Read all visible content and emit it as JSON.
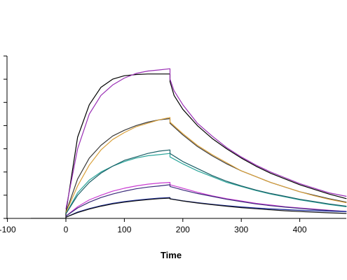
{
  "chart_data": {
    "type": "line",
    "title": "",
    "xlabel": "Time",
    "ylabel": "",
    "xlim": [
      -100,
      480
    ],
    "ylim": [
      0,
      14
    ],
    "x_ticks": [
      -100,
      0,
      100,
      200,
      300,
      400
    ],
    "x_tick_labels": [
      "-100",
      "0",
      "100",
      "200",
      "300",
      "400"
    ],
    "y_ticks": [
      0,
      2,
      4,
      6,
      8,
      10,
      12,
      14
    ],
    "grid": false,
    "legend": "none",
    "series": [
      {
        "color": "#000000",
        "points": [
          [
            -60,
            0
          ],
          [
            0,
            0
          ],
          [
            0,
            0.5
          ],
          [
            20,
            7.0
          ],
          [
            40,
            9.8
          ],
          [
            60,
            11.3
          ],
          [
            80,
            12.0
          ],
          [
            100,
            12.3
          ],
          [
            120,
            12.4
          ],
          [
            140,
            12.45
          ],
          [
            178,
            12.45
          ],
          [
            178,
            11.8
          ],
          [
            185,
            10.6
          ],
          [
            200,
            9.4
          ],
          [
            225,
            8.0
          ],
          [
            250,
            6.9
          ],
          [
            275,
            6.0
          ],
          [
            300,
            5.2
          ],
          [
            325,
            4.5
          ],
          [
            350,
            3.9
          ],
          [
            375,
            3.4
          ],
          [
            400,
            2.9
          ],
          [
            425,
            2.5
          ],
          [
            450,
            2.1
          ],
          [
            480,
            1.7
          ]
        ]
      },
      {
        "color": "#9a2fb5",
        "points": [
          [
            0,
            0.8
          ],
          [
            20,
            6.0
          ],
          [
            40,
            9.0
          ],
          [
            60,
            10.6
          ],
          [
            80,
            11.5
          ],
          [
            100,
            12.1
          ],
          [
            120,
            12.5
          ],
          [
            140,
            12.7
          ],
          [
            160,
            12.8
          ],
          [
            178,
            12.9
          ],
          [
            178,
            12.0
          ],
          [
            185,
            11.0
          ],
          [
            200,
            9.8
          ],
          [
            225,
            8.2
          ],
          [
            250,
            7.1
          ],
          [
            275,
            6.1
          ],
          [
            300,
            5.3
          ],
          [
            325,
            4.6
          ],
          [
            350,
            4.0
          ],
          [
            375,
            3.5
          ],
          [
            400,
            3.0
          ],
          [
            425,
            2.6
          ],
          [
            450,
            2.2
          ],
          [
            480,
            1.9
          ]
        ]
      },
      {
        "color": "#3a3a3a",
        "points": [
          [
            0,
            0.5
          ],
          [
            20,
            3.4
          ],
          [
            40,
            5.2
          ],
          [
            60,
            6.3
          ],
          [
            80,
            7.1
          ],
          [
            100,
            7.6
          ],
          [
            120,
            8.0
          ],
          [
            140,
            8.3
          ],
          [
            160,
            8.5
          ],
          [
            178,
            8.6
          ],
          [
            178,
            8.2
          ],
          [
            200,
            7.2
          ],
          [
            225,
            6.2
          ],
          [
            250,
            5.4
          ],
          [
            275,
            4.7
          ],
          [
            300,
            4.1
          ],
          [
            325,
            3.6
          ],
          [
            350,
            3.1
          ],
          [
            375,
            2.7
          ],
          [
            400,
            2.3
          ],
          [
            425,
            2.0
          ],
          [
            450,
            1.7
          ],
          [
            480,
            1.4
          ]
        ]
      },
      {
        "color": "#d9a03a",
        "points": [
          [
            0,
            0.5
          ],
          [
            20,
            2.8
          ],
          [
            40,
            4.6
          ],
          [
            60,
            5.9
          ],
          [
            80,
            6.8
          ],
          [
            100,
            7.4
          ],
          [
            120,
            7.9
          ],
          [
            140,
            8.2
          ],
          [
            160,
            8.5
          ],
          [
            178,
            8.7
          ],
          [
            178,
            8.3
          ],
          [
            200,
            7.3
          ],
          [
            225,
            6.3
          ],
          [
            250,
            5.5
          ],
          [
            275,
            4.8
          ],
          [
            300,
            4.1
          ],
          [
            325,
            3.6
          ],
          [
            350,
            3.1
          ],
          [
            375,
            2.7
          ],
          [
            400,
            2.3
          ],
          [
            425,
            1.95
          ],
          [
            450,
            1.65
          ],
          [
            480,
            1.35
          ]
        ]
      },
      {
        "color": "#2aa59a",
        "points": [
          [
            0,
            0.4
          ],
          [
            20,
            2.2
          ],
          [
            40,
            3.3
          ],
          [
            60,
            4.0
          ],
          [
            80,
            4.5
          ],
          [
            100,
            4.9
          ],
          [
            120,
            5.2
          ],
          [
            140,
            5.4
          ],
          [
            160,
            5.5
          ],
          [
            178,
            5.6
          ],
          [
            178,
            5.3
          ],
          [
            200,
            4.7
          ],
          [
            225,
            4.1
          ],
          [
            250,
            3.6
          ],
          [
            275,
            3.1
          ],
          [
            300,
            2.75
          ],
          [
            325,
            2.4
          ],
          [
            350,
            2.1
          ],
          [
            375,
            1.85
          ],
          [
            400,
            1.6
          ],
          [
            425,
            1.4
          ],
          [
            450,
            1.2
          ],
          [
            480,
            1.0
          ]
        ]
      },
      {
        "color": "#1a5f66",
        "points": [
          [
            0,
            0.4
          ],
          [
            20,
            2.0
          ],
          [
            40,
            3.1
          ],
          [
            60,
            3.9
          ],
          [
            80,
            4.5
          ],
          [
            100,
            5.0
          ],
          [
            120,
            5.3
          ],
          [
            140,
            5.6
          ],
          [
            160,
            5.8
          ],
          [
            178,
            5.9
          ],
          [
            178,
            5.6
          ],
          [
            200,
            4.9
          ],
          [
            225,
            4.3
          ],
          [
            250,
            3.7
          ],
          [
            275,
            3.2
          ],
          [
            300,
            2.8
          ],
          [
            325,
            2.45
          ],
          [
            350,
            2.15
          ],
          [
            375,
            1.9
          ],
          [
            400,
            1.65
          ],
          [
            425,
            1.45
          ],
          [
            450,
            1.25
          ],
          [
            480,
            1.05
          ]
        ]
      },
      {
        "color": "#c93ad1",
        "points": [
          [
            0,
            0.2
          ],
          [
            20,
            1.0
          ],
          [
            40,
            1.6
          ],
          [
            60,
            2.0
          ],
          [
            80,
            2.35
          ],
          [
            100,
            2.6
          ],
          [
            120,
            2.8
          ],
          [
            140,
            2.95
          ],
          [
            160,
            3.05
          ],
          [
            178,
            3.1
          ],
          [
            178,
            2.9
          ],
          [
            200,
            2.6
          ],
          [
            225,
            2.25
          ],
          [
            250,
            1.95
          ],
          [
            275,
            1.7
          ],
          [
            300,
            1.5
          ],
          [
            325,
            1.3
          ],
          [
            350,
            1.15
          ],
          [
            375,
            1.0
          ],
          [
            400,
            0.9
          ],
          [
            425,
            0.8
          ],
          [
            450,
            0.7
          ],
          [
            480,
            0.6
          ]
        ]
      },
      {
        "color": "#3a2a7a",
        "points": [
          [
            0,
            0.2
          ],
          [
            20,
            0.9
          ],
          [
            40,
            1.4
          ],
          [
            60,
            1.8
          ],
          [
            80,
            2.1
          ],
          [
            100,
            2.35
          ],
          [
            120,
            2.55
          ],
          [
            140,
            2.7
          ],
          [
            160,
            2.8
          ],
          [
            178,
            2.9
          ],
          [
            178,
            2.75
          ],
          [
            200,
            2.45
          ],
          [
            225,
            2.15
          ],
          [
            250,
            1.9
          ],
          [
            275,
            1.65
          ],
          [
            300,
            1.45
          ],
          [
            325,
            1.25
          ],
          [
            350,
            1.1
          ],
          [
            375,
            0.97
          ],
          [
            400,
            0.86
          ],
          [
            425,
            0.76
          ],
          [
            450,
            0.68
          ],
          [
            480,
            0.6
          ]
        ]
      },
      {
        "color": "#1e2fa0",
        "points": [
          [
            0,
            0.1
          ],
          [
            20,
            0.55
          ],
          [
            40,
            0.85
          ],
          [
            60,
            1.1
          ],
          [
            80,
            1.3
          ],
          [
            100,
            1.45
          ],
          [
            120,
            1.57
          ],
          [
            140,
            1.67
          ],
          [
            160,
            1.75
          ],
          [
            178,
            1.8
          ],
          [
            178,
            1.7
          ],
          [
            200,
            1.52
          ],
          [
            225,
            1.36
          ],
          [
            250,
            1.22
          ],
          [
            275,
            1.1
          ],
          [
            300,
            0.99
          ],
          [
            325,
            0.9
          ],
          [
            350,
            0.82
          ],
          [
            375,
            0.76
          ],
          [
            400,
            0.7
          ],
          [
            425,
            0.66
          ],
          [
            450,
            0.62
          ],
          [
            480,
            0.58
          ]
        ]
      },
      {
        "color": "#111111",
        "points": [
          [
            0,
            0.1
          ],
          [
            20,
            0.5
          ],
          [
            40,
            0.8
          ],
          [
            60,
            1.05
          ],
          [
            80,
            1.25
          ],
          [
            100,
            1.4
          ],
          [
            120,
            1.52
          ],
          [
            140,
            1.62
          ],
          [
            160,
            1.7
          ],
          [
            178,
            1.75
          ],
          [
            178,
            1.68
          ],
          [
            200,
            1.5
          ],
          [
            225,
            1.33
          ],
          [
            250,
            1.18
          ],
          [
            275,
            1.05
          ],
          [
            300,
            0.93
          ],
          [
            325,
            0.83
          ],
          [
            350,
            0.74
          ],
          [
            375,
            0.66
          ],
          [
            400,
            0.59
          ],
          [
            425,
            0.53
          ],
          [
            450,
            0.48
          ],
          [
            480,
            0.43
          ]
        ]
      }
    ]
  }
}
